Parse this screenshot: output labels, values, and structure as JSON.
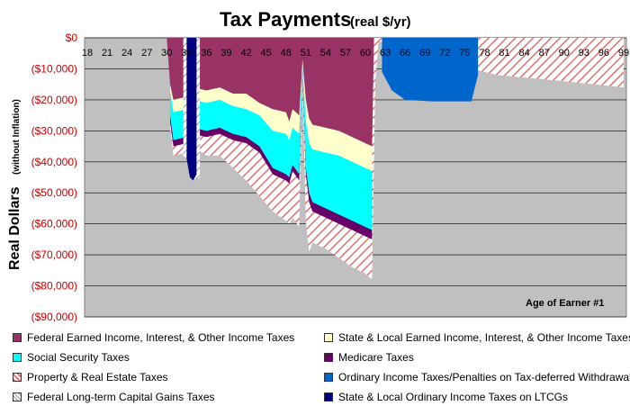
{
  "chart_data": {
    "type": "area",
    "title": "Tax Payments",
    "subtitle": "(real $/yr)",
    "ylabel": "Real Dollars",
    "ylabel_note": "(without Inflation)",
    "xlabel": "Age of Earner #1",
    "ylim": [
      -90000,
      0
    ],
    "y_ticks": [
      "$0",
      "($10,000)",
      "($20,000)",
      "($30,000)",
      "($40,000)",
      "($50,000)",
      "($60,000)",
      "($70,000)",
      "($80,000)",
      "($90,000)"
    ],
    "x_ticks": [
      "18",
      "21",
      "24",
      "27",
      "30",
      "33",
      "36",
      "39",
      "42",
      "45",
      "48",
      "51",
      "54",
      "57",
      "60",
      "63",
      "66",
      "69",
      "72",
      "75",
      "78",
      "81",
      "84",
      "87",
      "90",
      "93",
      "96",
      "99"
    ],
    "xlim": [
      18,
      99
    ],
    "grid": true,
    "legend_position": "bottom",
    "series": [
      {
        "name": "Federal Earned Income, Interest, & Other Income Taxes",
        "color": "#993366",
        "pattern": "solid",
        "values": [
          [
            30,
            0
          ],
          [
            30.5,
            -15000
          ],
          [
            31,
            -20000
          ],
          [
            33,
            -19000
          ],
          [
            33.5,
            -10000
          ],
          [
            34,
            -16000
          ],
          [
            36,
            -17000
          ],
          [
            38,
            -16000
          ],
          [
            40,
            -18000
          ],
          [
            42,
            -18000
          ],
          [
            44,
            -21000
          ],
          [
            46,
            -23000
          ],
          [
            48,
            -24000
          ],
          [
            48.5,
            -27000
          ],
          [
            49,
            -23000
          ],
          [
            50,
            -25000
          ],
          [
            50.5,
            -7000
          ],
          [
            51,
            -20000
          ],
          [
            51.5,
            -26000
          ],
          [
            52,
            -28000
          ],
          [
            54,
            -29000
          ],
          [
            56,
            -30000
          ],
          [
            58,
            -32000
          ],
          [
            60,
            -34000
          ],
          [
            61,
            -35000
          ],
          [
            61.3,
            0
          ]
        ]
      },
      {
        "name": "State & Local Earned Income, Interest, & Other Income Taxes",
        "color": "#ffffcc",
        "pattern": "solid",
        "values": [
          [
            30.5,
            -17000
          ],
          [
            31,
            -24000
          ],
          [
            33,
            -23000
          ],
          [
            33.5,
            -15000
          ],
          [
            34,
            -20000
          ],
          [
            36,
            -21000
          ],
          [
            38,
            -20000
          ],
          [
            40,
            -22000
          ],
          [
            42,
            -23000
          ],
          [
            44,
            -25000
          ],
          [
            46,
            -30000
          ],
          [
            48,
            -31000
          ],
          [
            48.5,
            -33000
          ],
          [
            49,
            -29000
          ],
          [
            50,
            -31000
          ],
          [
            50.5,
            -9000
          ],
          [
            51,
            -27000
          ],
          [
            51.5,
            -34000
          ],
          [
            52,
            -36000
          ],
          [
            54,
            -37000
          ],
          [
            56,
            -38000
          ],
          [
            58,
            -40000
          ],
          [
            60,
            -42000
          ],
          [
            61,
            -43000
          ]
        ]
      },
      {
        "name": "Social Security Taxes",
        "color": "#00ffff",
        "pattern": "solid",
        "values": [
          [
            30.5,
            -25000
          ],
          [
            31,
            -33000
          ],
          [
            33,
            -32000
          ],
          [
            33.5,
            -21000
          ],
          [
            34,
            -29000
          ],
          [
            36,
            -30000
          ],
          [
            38,
            -29000
          ],
          [
            40,
            -31000
          ],
          [
            42,
            -32000
          ],
          [
            44,
            -35000
          ],
          [
            46,
            -42000
          ],
          [
            48,
            -44000
          ],
          [
            48.5,
            -45000
          ],
          [
            49,
            -41000
          ],
          [
            50,
            -44000
          ],
          [
            50.5,
            -10000
          ],
          [
            51,
            -42000
          ],
          [
            51.5,
            -50000
          ],
          [
            52,
            -53000
          ],
          [
            54,
            -55000
          ],
          [
            56,
            -57000
          ],
          [
            58,
            -59000
          ],
          [
            60,
            -61000
          ],
          [
            61,
            -62000
          ]
        ]
      },
      {
        "name": "Medicare Taxes",
        "color": "#660066",
        "pattern": "solid",
        "values": [
          [
            30.5,
            -27000
          ],
          [
            31,
            -35000
          ],
          [
            33,
            -34000
          ],
          [
            33.5,
            -23000
          ],
          [
            34,
            -31000
          ],
          [
            36,
            -32000
          ],
          [
            38,
            -31000
          ],
          [
            40,
            -33000
          ],
          [
            42,
            -34000
          ],
          [
            44,
            -37000
          ],
          [
            46,
            -44000
          ],
          [
            48,
            -46000
          ],
          [
            48.5,
            -47000
          ],
          [
            49,
            -43000
          ],
          [
            50,
            -46000
          ],
          [
            50.5,
            -11000
          ],
          [
            51,
            -44000
          ],
          [
            51.5,
            -53000
          ],
          [
            52,
            -56000
          ],
          [
            54,
            -58000
          ],
          [
            56,
            -60000
          ],
          [
            58,
            -62000
          ],
          [
            60,
            -64000
          ],
          [
            61,
            -65000
          ]
        ]
      },
      {
        "name": "Property & Real Estate Taxes",
        "color": "#ff9999",
        "pattern": "hatched",
        "values": [
          [
            30.5,
            -29000
          ],
          [
            31,
            -38000
          ],
          [
            33,
            -37000
          ],
          [
            33.5,
            -27000
          ],
          [
            34,
            -35000
          ],
          [
            36,
            -38000
          ],
          [
            38,
            -38000
          ],
          [
            40,
            -42000
          ],
          [
            42,
            -46000
          ],
          [
            44,
            -51000
          ],
          [
            46,
            -56000
          ],
          [
            48,
            -59000
          ],
          [
            48.5,
            -60000
          ],
          [
            49,
            -58000
          ],
          [
            50,
            -61000
          ],
          [
            50.5,
            -13000
          ],
          [
            51,
            -59000
          ],
          [
            51.5,
            -69000
          ],
          [
            52,
            -66000
          ],
          [
            54,
            -68000
          ],
          [
            56,
            -71000
          ],
          [
            58,
            -74000
          ],
          [
            60,
            -76000
          ],
          [
            61,
            -78000
          ],
          [
            61.5,
            -14000
          ],
          [
            62,
            -1000
          ],
          [
            70,
            -7000
          ],
          [
            80,
            -12000
          ],
          [
            90,
            -14000
          ],
          [
            99,
            -16000
          ]
        ]
      },
      {
        "name": "Ordinary Income Taxes/Penalties on Tax-deferred Withdrawals",
        "color": "#0066cc",
        "pattern": "solid",
        "values": [
          [
            62.5,
            -11000
          ],
          [
            64,
            -17000
          ],
          [
            66,
            -20000
          ],
          [
            70,
            -20500
          ],
          [
            76,
            -20500
          ],
          [
            77,
            -12000
          ]
        ]
      },
      {
        "name": "Federal Long-term Capital Gains Taxes",
        "color": "#ffffff",
        "pattern": "hatched",
        "values": [
          [
            32.5,
            -38000
          ],
          [
            33,
            -39000
          ],
          [
            33.5,
            -44000
          ],
          [
            34,
            -46000
          ],
          [
            35,
            -45000
          ]
        ]
      },
      {
        "name": "State & Local Ordinary Income Taxes on LTCGs",
        "color": "#000080",
        "pattern": "solid",
        "values": [
          [
            33,
            -39000
          ],
          [
            33.5,
            -45000
          ],
          [
            34,
            -46000
          ],
          [
            34.5,
            -44000
          ]
        ]
      }
    ]
  }
}
